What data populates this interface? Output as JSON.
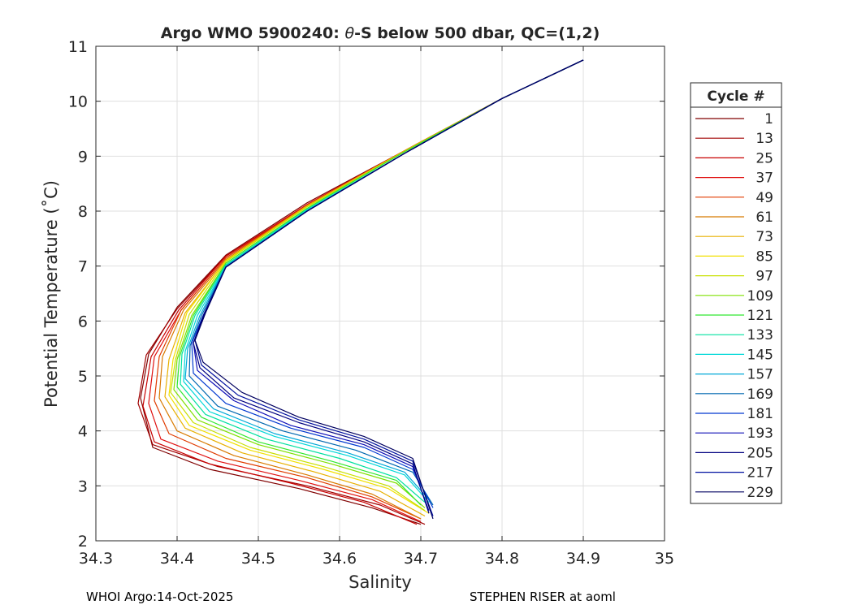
{
  "chart_data": {
    "type": "line",
    "title_prefix": "Argo WMO 5900240: ",
    "title_symbol": "θ",
    "title_suffix": "-S below 500 dbar,  QC=(1,2)",
    "xlabel": "Salinity",
    "ylabel": "Potential Temperature (˚C)",
    "xlim": [
      34.3,
      35
    ],
    "ylim": [
      2,
      11
    ],
    "xticks": [
      "34.3",
      "34.4",
      "34.5",
      "34.6",
      "34.7",
      "34.8",
      "34.9",
      "35"
    ],
    "yticks": [
      "2",
      "3",
      "4",
      "5",
      "6",
      "7",
      "8",
      "9",
      "10",
      "11"
    ],
    "grid": true,
    "legend": {
      "title": "Cycle #",
      "placement": "right-outside",
      "entries": [
        {
          "label": "1",
          "color": "#800000"
        },
        {
          "label": "13",
          "color": "#a00000"
        },
        {
          "label": "25",
          "color": "#c80000"
        },
        {
          "label": "37",
          "color": "#e01010"
        },
        {
          "label": "49",
          "color": "#e03b00"
        },
        {
          "label": "61",
          "color": "#d87a00"
        },
        {
          "label": "73",
          "color": "#e8b000"
        },
        {
          "label": "85",
          "color": "#f2e000"
        },
        {
          "label": "97",
          "color": "#c8e000"
        },
        {
          "label": "109",
          "color": "#80e000"
        },
        {
          "label": "121",
          "color": "#30e830"
        },
        {
          "label": "133",
          "color": "#00e0a0"
        },
        {
          "label": "145",
          "color": "#00d8d8"
        },
        {
          "label": "157",
          "color": "#00a8d8"
        },
        {
          "label": "169",
          "color": "#0068b0"
        },
        {
          "label": "181",
          "color": "#0038d0"
        },
        {
          "label": "193",
          "color": "#1010b8"
        },
        {
          "label": "205",
          "color": "#000080"
        },
        {
          "label": "217",
          "color": "#0010a0"
        },
        {
          "label": "229",
          "color": "#000060"
        }
      ]
    },
    "series": [
      {
        "name": "1",
        "color": "#800000",
        "s": [
          34.9,
          34.8,
          34.68,
          34.56,
          34.46,
          34.4,
          34.365,
          34.355,
          34.37,
          34.44,
          34.55,
          34.64,
          34.7
        ],
        "t": [
          10.75,
          10.05,
          9.1,
          8.15,
          7.2,
          6.25,
          5.4,
          4.6,
          3.7,
          3.3,
          2.95,
          2.6,
          2.3
        ]
      },
      {
        "name": "13",
        "color": "#a00000",
        "s": [
          34.9,
          34.8,
          34.68,
          34.56,
          34.46,
          34.4,
          34.362,
          34.352,
          34.37,
          34.45,
          34.56,
          34.65,
          34.705
        ],
        "t": [
          10.75,
          10.05,
          9.1,
          8.12,
          7.18,
          6.22,
          5.38,
          4.5,
          3.75,
          3.35,
          3.0,
          2.65,
          2.3
        ]
      },
      {
        "name": "25",
        "color": "#c80000",
        "s": [
          34.9,
          34.8,
          34.68,
          34.56,
          34.46,
          34.402,
          34.368,
          34.358,
          34.372,
          34.44,
          34.54,
          34.63,
          34.695
        ],
        "t": [
          10.75,
          10.05,
          9.1,
          8.12,
          7.18,
          6.2,
          5.35,
          4.45,
          3.8,
          3.4,
          3.05,
          2.7,
          2.3
        ]
      },
      {
        "name": "37",
        "color": "#e01010",
        "s": [
          34.9,
          34.8,
          34.68,
          34.56,
          34.46,
          34.405,
          34.372,
          34.365,
          34.38,
          34.45,
          34.55,
          34.64,
          34.7
        ],
        "t": [
          10.75,
          10.05,
          9.1,
          8.12,
          7.15,
          6.2,
          5.35,
          4.5,
          3.85,
          3.45,
          3.1,
          2.75,
          2.35
        ]
      },
      {
        "name": "49",
        "color": "#e03b00",
        "s": [
          34.9,
          34.8,
          34.68,
          34.56,
          34.46,
          34.405,
          34.378,
          34.372,
          34.39,
          34.46,
          34.56,
          34.64,
          34.7
        ],
        "t": [
          10.75,
          10.05,
          9.1,
          8.1,
          7.15,
          6.2,
          5.35,
          4.55,
          3.95,
          3.5,
          3.15,
          2.8,
          2.4
        ]
      },
      {
        "name": "61",
        "color": "#d87a00",
        "s": [
          34.9,
          34.8,
          34.68,
          34.56,
          34.46,
          34.408,
          34.382,
          34.378,
          34.4,
          34.47,
          34.56,
          34.64,
          34.7
        ],
        "t": [
          10.75,
          10.05,
          9.1,
          8.1,
          7.12,
          6.2,
          5.35,
          4.6,
          4.0,
          3.55,
          3.2,
          2.85,
          2.4
        ]
      },
      {
        "name": "73",
        "color": "#e8b000",
        "s": [
          34.9,
          34.8,
          34.68,
          34.56,
          34.46,
          34.41,
          34.39,
          34.385,
          34.41,
          34.48,
          34.57,
          34.65,
          34.705
        ],
        "t": [
          10.75,
          10.05,
          9.1,
          8.1,
          7.1,
          6.15,
          5.3,
          4.62,
          4.05,
          3.6,
          3.25,
          2.9,
          2.45
        ]
      },
      {
        "name": "85",
        "color": "#f2e000",
        "s": [
          34.9,
          34.8,
          34.68,
          34.56,
          34.46,
          34.412,
          34.395,
          34.39,
          34.415,
          34.49,
          34.58,
          34.66,
          34.71
        ],
        "t": [
          10.75,
          10.05,
          9.08,
          8.08,
          7.1,
          6.15,
          5.3,
          4.65,
          4.1,
          3.65,
          3.3,
          2.95,
          2.5
        ]
      },
      {
        "name": "97",
        "color": "#c8e000",
        "s": [
          34.9,
          34.8,
          34.68,
          34.56,
          34.46,
          34.415,
          34.398,
          34.392,
          34.42,
          34.49,
          34.58,
          34.66,
          34.705
        ],
        "t": [
          10.75,
          10.05,
          9.08,
          8.08,
          7.08,
          6.12,
          5.3,
          4.7,
          4.15,
          3.7,
          3.35,
          3.0,
          2.55
        ]
      },
      {
        "name": "109",
        "color": "#80e000",
        "s": [
          34.9,
          34.8,
          34.68,
          34.56,
          34.46,
          34.418,
          34.4,
          34.396,
          34.425,
          34.5,
          34.59,
          34.67,
          34.705
        ],
        "t": [
          10.75,
          10.05,
          9.08,
          8.05,
          7.05,
          6.1,
          5.3,
          4.75,
          4.2,
          3.75,
          3.4,
          3.05,
          2.6
        ]
      },
      {
        "name": "121",
        "color": "#30e830",
        "s": [
          34.9,
          34.8,
          34.68,
          34.56,
          34.46,
          34.42,
          34.403,
          34.4,
          34.43,
          34.5,
          34.59,
          34.67,
          34.7
        ],
        "t": [
          10.75,
          10.05,
          9.08,
          8.05,
          7.05,
          6.1,
          5.35,
          4.8,
          4.25,
          3.8,
          3.45,
          3.1,
          2.65
        ]
      },
      {
        "name": "133",
        "color": "#00e0a0",
        "s": [
          34.9,
          34.8,
          34.68,
          34.56,
          34.46,
          34.422,
          34.406,
          34.404,
          34.435,
          34.51,
          34.6,
          34.67,
          34.705
        ],
        "t": [
          10.75,
          10.05,
          9.05,
          8.03,
          7.02,
          6.1,
          5.4,
          4.85,
          4.3,
          3.85,
          3.5,
          3.15,
          2.7
        ]
      },
      {
        "name": "145",
        "color": "#00d8d8",
        "s": [
          34.9,
          34.8,
          34.68,
          34.56,
          34.46,
          34.425,
          34.41,
          34.408,
          34.44,
          34.52,
          34.61,
          34.68,
          34.71
        ],
        "t": [
          10.75,
          10.05,
          9.05,
          8.02,
          7.0,
          6.1,
          5.45,
          4.9,
          4.35,
          3.9,
          3.55,
          3.2,
          2.7
        ]
      },
      {
        "name": "157",
        "color": "#00a8d8",
        "s": [
          34.9,
          34.8,
          34.68,
          34.56,
          34.46,
          34.428,
          34.413,
          34.41,
          34.445,
          34.52,
          34.61,
          34.68,
          34.71
        ],
        "t": [
          10.75,
          10.05,
          9.05,
          8.0,
          7.0,
          6.1,
          5.5,
          4.95,
          4.4,
          3.95,
          3.6,
          3.25,
          2.75
        ]
      },
      {
        "name": "169",
        "color": "#0068b0",
        "s": [
          34.9,
          34.8,
          34.68,
          34.56,
          34.46,
          34.43,
          34.416,
          34.415,
          34.45,
          34.53,
          34.62,
          34.69,
          34.715
        ],
        "t": [
          10.75,
          10.05,
          9.05,
          8.0,
          6.98,
          6.1,
          5.55,
          5.0,
          4.45,
          4.0,
          3.65,
          3.25,
          2.65
        ]
      },
      {
        "name": "181",
        "color": "#0038d0",
        "s": [
          34.9,
          34.8,
          34.68,
          34.56,
          34.46,
          34.432,
          34.418,
          34.42,
          34.46,
          34.54,
          34.63,
          34.69,
          34.715
        ],
        "t": [
          10.75,
          10.05,
          9.05,
          8.0,
          6.98,
          6.1,
          5.6,
          5.05,
          4.5,
          4.05,
          3.7,
          3.3,
          2.6
        ]
      },
      {
        "name": "193",
        "color": "#1010b8",
        "s": [
          34.9,
          34.8,
          34.68,
          34.56,
          34.46,
          34.433,
          34.42,
          34.425,
          34.47,
          34.54,
          34.63,
          34.69,
          34.71
        ],
        "t": [
          10.75,
          10.05,
          9.05,
          8.0,
          6.98,
          6.12,
          5.6,
          5.1,
          4.55,
          4.1,
          3.75,
          3.35,
          2.55
        ]
      },
      {
        "name": "205",
        "color": "#000080",
        "s": [
          34.9,
          34.8,
          34.68,
          34.56,
          34.46,
          34.433,
          34.42,
          34.428,
          34.47,
          34.55,
          34.63,
          34.69,
          34.71
        ],
        "t": [
          10.75,
          10.05,
          9.05,
          8.0,
          6.98,
          6.12,
          5.6,
          5.15,
          4.6,
          4.15,
          3.8,
          3.4,
          2.5
        ]
      },
      {
        "name": "217",
        "color": "#0010a0",
        "s": [
          34.9,
          34.8,
          34.68,
          34.56,
          34.46,
          34.435,
          34.422,
          34.43,
          34.475,
          34.55,
          34.63,
          34.69,
          34.715
        ],
        "t": [
          10.75,
          10.05,
          9.05,
          8.0,
          6.98,
          6.15,
          5.65,
          5.2,
          4.65,
          4.2,
          3.85,
          3.45,
          2.45
        ]
      },
      {
        "name": "229",
        "color": "#000060",
        "s": [
          34.9,
          34.8,
          34.68,
          34.56,
          34.46,
          34.435,
          34.422,
          34.432,
          34.48,
          34.55,
          34.63,
          34.69,
          34.715
        ],
        "t": [
          10.75,
          10.05,
          9.05,
          8.0,
          6.98,
          6.15,
          5.65,
          5.25,
          4.7,
          4.25,
          3.9,
          3.5,
          2.4
        ]
      }
    ]
  },
  "footer": {
    "left": "WHOI Argo:14-Oct-2025",
    "right": "STEPHEN RISER at aoml"
  }
}
